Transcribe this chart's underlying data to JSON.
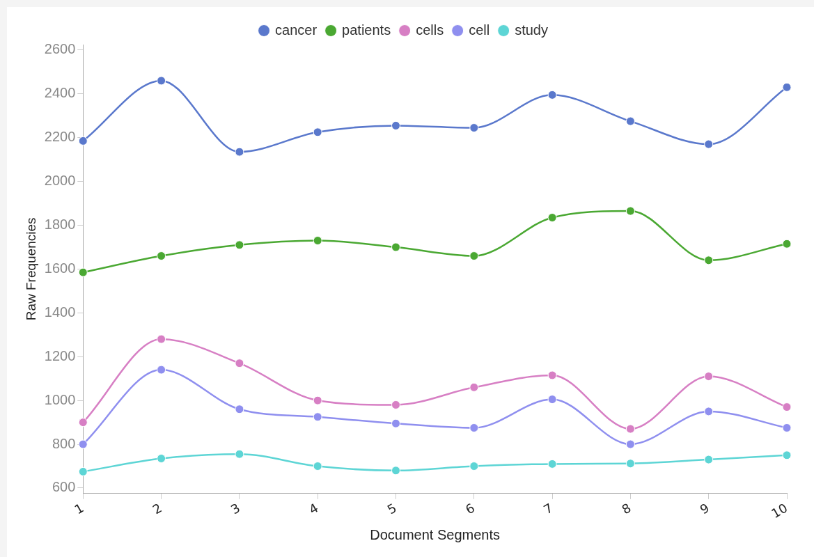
{
  "chart_data": {
    "type": "line",
    "xlabel": "Document Segments",
    "ylabel": "Raw Frequencies",
    "categories": [
      "1",
      "2",
      "3",
      "4",
      "5",
      "6",
      "7",
      "8",
      "9",
      "10"
    ],
    "series": [
      {
        "name": "cancer",
        "color": "#5a78cc",
        "values": [
          2185,
          2460,
          2135,
          2225,
          2255,
          2245,
          2395,
          2275,
          2170,
          2430
        ]
      },
      {
        "name": "patients",
        "color": "#4aa832",
        "values": [
          1585,
          1660,
          1710,
          1730,
          1700,
          1660,
          1835,
          1865,
          1640,
          1715
        ]
      },
      {
        "name": "cells",
        "color": "#d77fc4",
        "values": [
          900,
          1280,
          1170,
          1000,
          980,
          1060,
          1115,
          870,
          1110,
          970
        ]
      },
      {
        "name": "cell",
        "color": "#8f8fef",
        "values": [
          800,
          1140,
          960,
          925,
          895,
          875,
          1005,
          800,
          950,
          875
        ]
      },
      {
        "name": "study",
        "color": "#5dd5d5",
        "values": [
          675,
          735,
          755,
          700,
          680,
          700,
          710,
          712,
          730,
          750
        ]
      }
    ],
    "ylim": [
      575,
      2625
    ],
    "yticks": [
      600,
      800,
      1000,
      1200,
      1400,
      1600,
      1800,
      2000,
      2200,
      2400,
      2600
    ],
    "grid": false,
    "legend": "top",
    "marker": "circle",
    "line_style": "solid"
  }
}
